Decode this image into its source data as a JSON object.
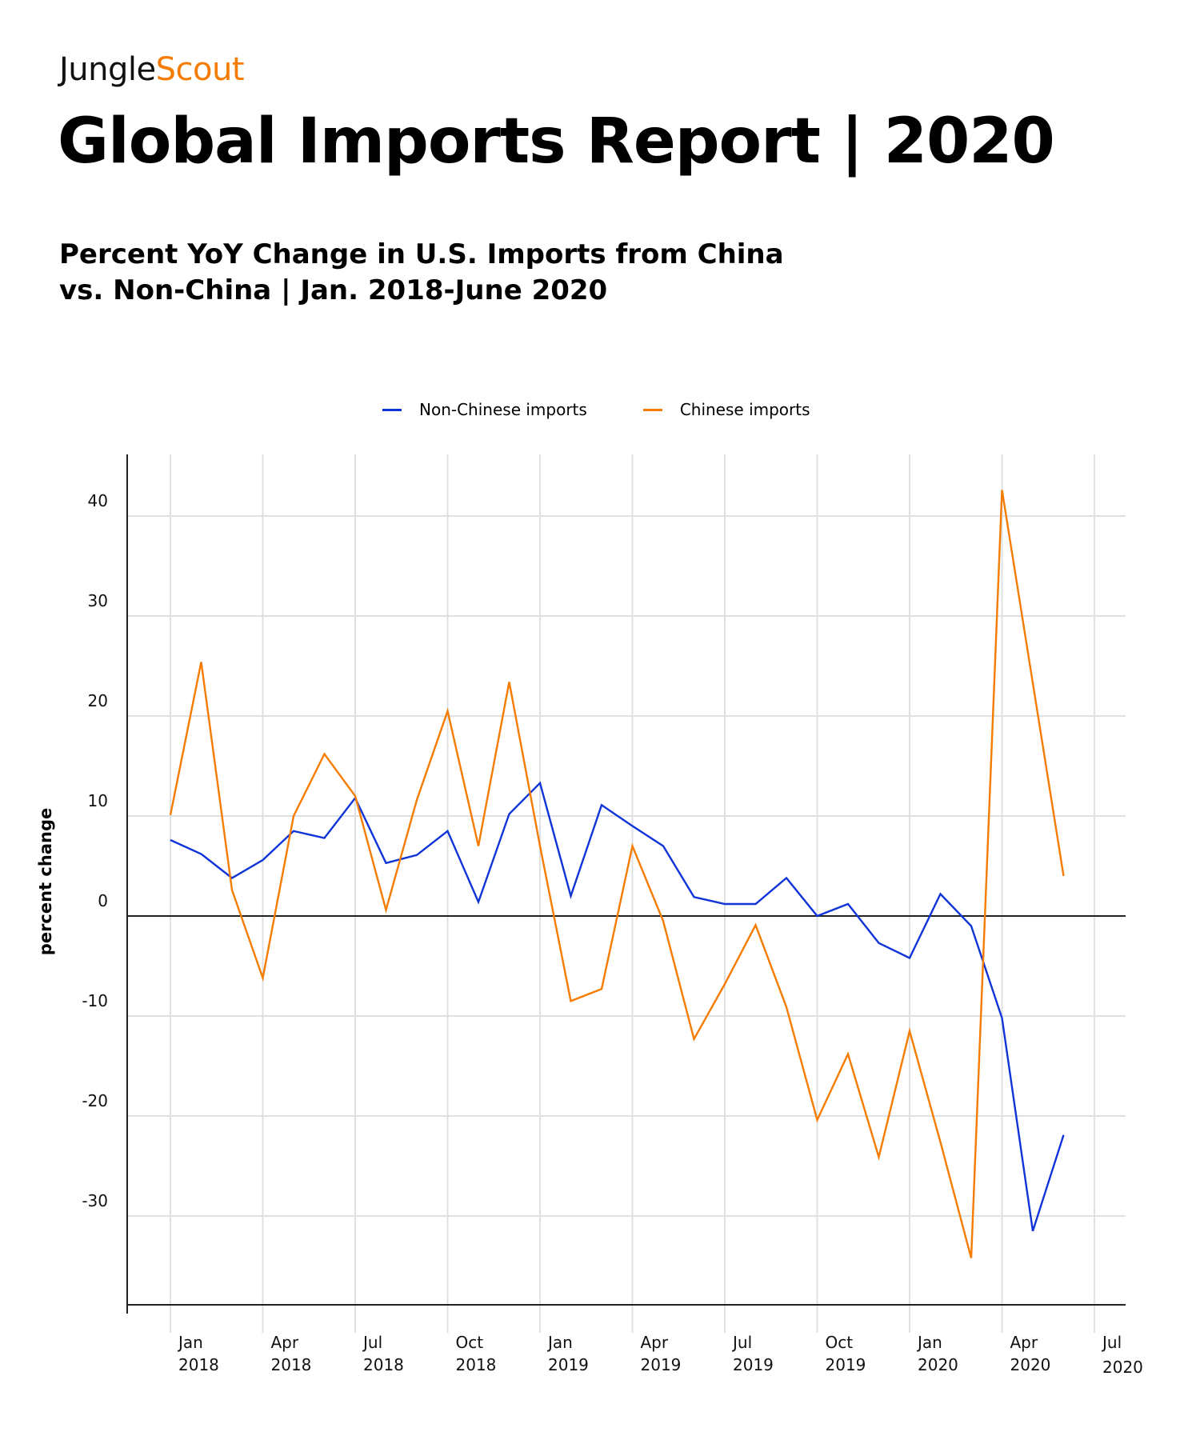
{
  "header": {
    "logo_part1": "Jungle",
    "logo_part2": "Scout",
    "title": "Global Imports Report | 2020",
    "subtitle_line1": "Percent YoY Change in U.S. Imports from China",
    "subtitle_line2": "vs. Non-China | Jan. 2018-June 2020"
  },
  "colors": {
    "brand_orange": "#f57c00",
    "series_blue": "#1034d8",
    "series_orange": "#f57c00",
    "grid": "#dde1e4",
    "axis": "#222222"
  },
  "chart_data": {
    "type": "line",
    "title": "Percent YoY Change in U.S. Imports from China vs. Non-China | Jan. 2018-June 2020",
    "xlabel": "",
    "ylabel": "percent change",
    "ylim": [
      -39,
      46
    ],
    "grid": true,
    "legend_position": "top-center",
    "months": [
      "Jan 2018",
      "Feb 2018",
      "Mar 2018",
      "Apr 2018",
      "May 2018",
      "Jun 2018",
      "Jul 2018",
      "Aug 2018",
      "Sep 2018",
      "Oct 2018",
      "Nov 2018",
      "Dec 2018",
      "Jan 2019",
      "Feb 2019",
      "Mar 2019",
      "Apr 2019",
      "May 2019",
      "Jun 2019",
      "Jul 2019",
      "Aug 2019",
      "Sep 2019",
      "Oct 2019",
      "Nov 2019",
      "Dec 2019",
      "Jan 2020",
      "Feb 2020",
      "Mar 2020",
      "Apr 2020",
      "May 2020",
      "Jun 2020"
    ],
    "x_ticks": [
      {
        "month_index": 0,
        "line1": "Jan",
        "line2": "2018"
      },
      {
        "month_index": 3,
        "line1": "Apr",
        "line2": "2018"
      },
      {
        "month_index": 6,
        "line1": "Jul",
        "line2": "2018"
      },
      {
        "month_index": 9,
        "line1": "Oct",
        "line2": "2018"
      },
      {
        "month_index": 12,
        "line1": "Jan",
        "line2": "2019"
      },
      {
        "month_index": 15,
        "line1": "Apr",
        "line2": "2019"
      },
      {
        "month_index": 18,
        "line1": "Jul",
        "line2": "2019"
      },
      {
        "month_index": 21,
        "line1": "Oct",
        "line2": "2019"
      },
      {
        "month_index": 24,
        "line1": "Jan",
        "line2": "2020"
      },
      {
        "month_index": 27,
        "line1": "Apr",
        "line2": "2020"
      },
      {
        "month_index": 30,
        "line1": "Jul",
        "line2": "2020"
      }
    ],
    "y_ticks": [
      40,
      30,
      20,
      10,
      0,
      -10,
      -20,
      -30
    ],
    "series": [
      {
        "name": "Non-Chinese imports",
        "color": "#1034d8",
        "values": [
          7.6,
          6.2,
          3.8,
          5.6,
          8.5,
          7.8,
          11.8,
          5.3,
          6.1,
          8.5,
          1.4,
          10.2,
          13.3,
          2.0,
          11.1,
          9.0,
          7.0,
          1.9,
          1.2,
          1.2,
          3.8,
          0.0,
          1.2,
          -2.7,
          -4.2,
          2.2,
          -1.0,
          -10.2,
          -31.5,
          -21.9
        ]
      },
      {
        "name": "Chinese imports",
        "color": "#f57c00",
        "values": [
          10.1,
          25.4,
          2.6,
          -6.2,
          10.0,
          16.2,
          12.0,
          0.6,
          11.6,
          20.5,
          7.0,
          23.4,
          7.0,
          -8.5,
          -7.3,
          7.0,
          -0.5,
          -12.3,
          -6.8,
          -0.9,
          -9.1,
          -20.4,
          -13.8,
          -24.1,
          -11.5,
          -22.6,
          -34.2,
          42.6,
          23.3,
          4.0
        ]
      }
    ]
  }
}
